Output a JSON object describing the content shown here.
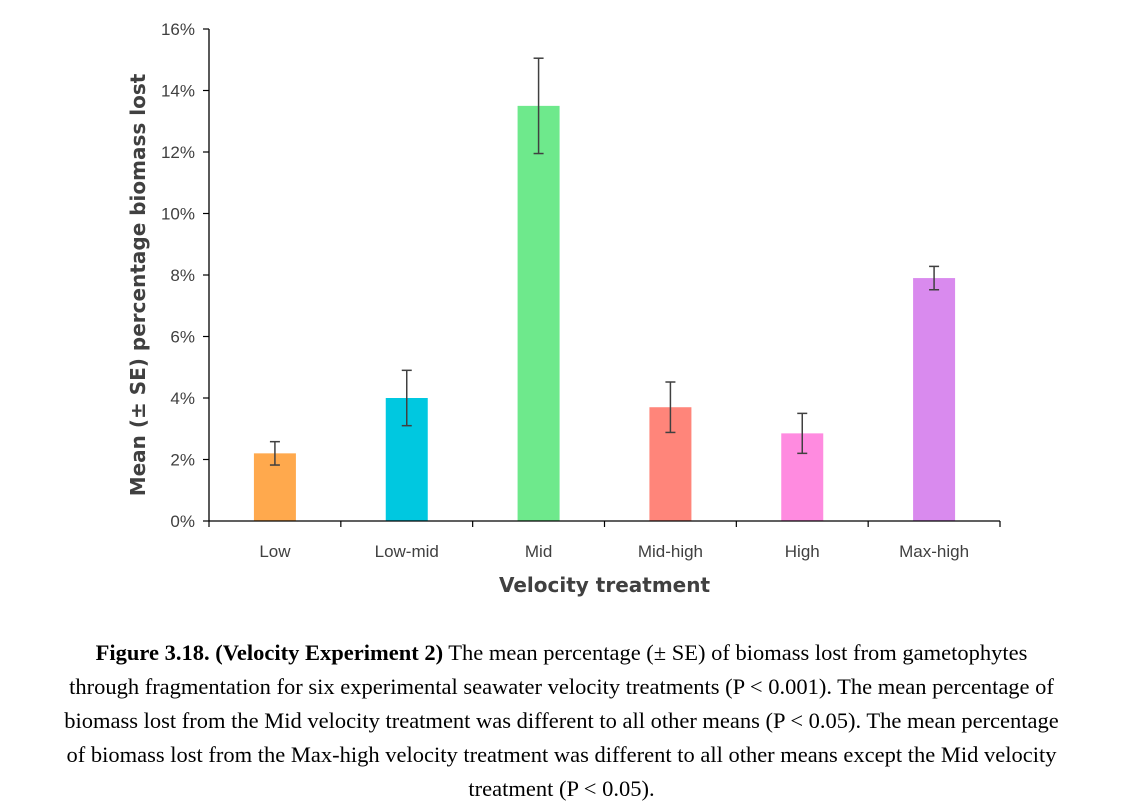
{
  "chart_data": {
    "type": "bar",
    "title": "",
    "xlabel": "Velocity treatment",
    "ylabel": "Mean (± SE) percentage biomass lost",
    "categories": [
      "Low",
      "Low-mid",
      "Mid",
      "Mid-high",
      "High",
      "Max-high"
    ],
    "values": [
      2.2,
      4.0,
      13.5,
      3.7,
      2.85,
      7.9
    ],
    "errors": [
      0.38,
      0.9,
      1.55,
      0.82,
      0.65,
      0.38
    ],
    "colors": [
      "#FFA94D",
      "#00C8E0",
      "#6EE98C",
      "#FF857A",
      "#FF8BE0",
      "#D98AEE"
    ],
    "ylim": [
      0,
      16
    ],
    "yticks": [
      0,
      2,
      4,
      6,
      8,
      10,
      12,
      14,
      16
    ],
    "ytick_labels": [
      "0%",
      "2%",
      "4%",
      "6%",
      "8%",
      "10%",
      "12%",
      "14%",
      "16%"
    ],
    "grid": false,
    "legend": "none"
  },
  "caption": {
    "bold": "Figure 3.18. (Velocity Experiment 2)",
    "line1": " The mean percentage (± SE) of biomass lost from gametophytes",
    "line2": "through fragmentation for six experimental seawater velocity treatments (P < 0.001). The mean percentage of",
    "line3": "biomass lost from the Mid velocity treatment was different to all other means (P < 0.05). The mean percentage",
    "line4": "of biomass lost from the Max-high velocity treatment was different to all other means except the Mid velocity",
    "line5": "treatment (P < 0.05)."
  }
}
